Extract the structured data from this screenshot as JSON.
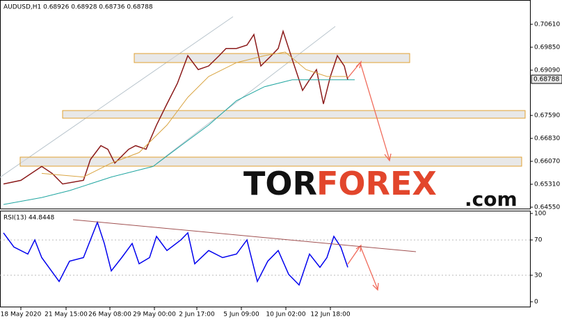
{
  "chart_data": [
    {
      "type": "line",
      "title": "AUDUSD,H1 0.68926 0.68928 0.68736 0.68788",
      "x": [
        5,
        30,
        60,
        75,
        90,
        120,
        130,
        145,
        155,
        165,
        185,
        195,
        210,
        225,
        240,
        255,
        270,
        285,
        300,
        315,
        325,
        340,
        355,
        365,
        375,
        390,
        400,
        407,
        420,
        435,
        445,
        455,
        465,
        475,
        485,
        495,
        500
      ],
      "series": [
        {
          "color": "#8b1a1a",
          "values": [
            0.6532,
            0.6544,
            0.659,
            0.6567,
            0.6532,
            0.6544,
            0.6613,
            0.6659,
            0.6647,
            0.6601,
            0.6647,
            0.6659,
            0.6647,
            0.6727,
            0.6797,
            0.6865,
            0.6957,
            0.6911,
            0.6923,
            0.6957,
            0.6981,
            0.6981,
            0.6992,
            0.7027,
            0.6923,
            0.6957,
            0.6981,
            0.7038,
            0.6946,
            0.6842,
            0.6877,
            0.6911,
            0.6797,
            0.6888,
            0.6957,
            0.6923,
            0.6877
          ]
        },
        {
          "color": "#d9a441",
          "x": [
            60,
            120,
            160,
            200,
            240,
            270,
            300,
            340,
            380,
            410,
            440,
            470,
            500
          ],
          "values": [
            0.6567,
            0.6555,
            0.6601,
            0.6636,
            0.6727,
            0.6819,
            0.6888,
            0.6934,
            0.6957,
            0.6969,
            0.6911,
            0.6888,
            0.6888
          ]
        },
        {
          "color": "#1fa5a0",
          "x": [
            5,
            60,
            100,
            160,
            220,
            260,
            300,
            340,
            380,
            420,
            460,
            510
          ],
          "values": [
            0.6464,
            0.6487,
            0.651,
            0.6555,
            0.659,
            0.6659,
            0.6727,
            0.6808,
            0.6854,
            0.6877,
            0.6877,
            0.6877
          ]
        }
      ],
      "xlim": [
        0,
        762
      ],
      "ylim": [
        0.64504,
        0.71346
      ],
      "yticks": [
        {
          "value": 0.7061,
          "label": "0.70610"
        },
        {
          "value": 0.6985,
          "label": "0.69850"
        },
        {
          "value": 0.6909,
          "label": "0.69090"
        },
        {
          "value": 0.6759,
          "label": "0.67590"
        },
        {
          "value": 0.6683,
          "label": "0.66830"
        },
        {
          "value": 0.6607,
          "label": "0.66070"
        },
        {
          "value": 0.6531,
          "label": "0.65310"
        },
        {
          "value": 0.6455,
          "label": "0.64550"
        }
      ],
      "last_price": 0.68788,
      "watermark": [
        "TOR",
        "FOREX",
        ".com"
      ]
    },
    {
      "type": "line",
      "title": "RSI(13) 44.8448",
      "x": [
        5,
        20,
        40,
        50,
        60,
        85,
        100,
        120,
        130,
        140,
        150,
        160,
        175,
        190,
        200,
        215,
        225,
        240,
        260,
        270,
        280,
        300,
        320,
        340,
        355,
        370,
        385,
        400,
        415,
        430,
        445,
        460,
        470,
        480,
        490,
        500
      ],
      "series": [
        {
          "color": "#0000ee",
          "values": [
            78,
            62,
            54,
            70,
            50,
            23,
            46,
            50,
            70,
            90,
            66,
            35,
            50,
            66,
            43,
            50,
            74,
            58,
            70,
            78,
            43,
            58,
            50,
            54,
            70,
            23,
            46,
            58,
            31,
            19,
            54,
            39,
            50,
            74,
            62,
            39
          ]
        }
      ],
      "xlim": [
        0,
        762
      ],
      "ylim": [
        0,
        100
      ],
      "yticks": [
        100,
        70,
        30,
        0
      ],
      "xticks": [
        {
          "value": 30,
          "label": "18 May 2020"
        },
        {
          "value": 95,
          "label": "21 May 15:00"
        },
        {
          "value": 158,
          "label": "26 May 08:00"
        },
        {
          "value": 222,
          "label": "29 May 00:00"
        },
        {
          "value": 283,
          "label": "2 Jun 17:00"
        },
        {
          "value": 347,
          "label": "5 Jun 09:00"
        },
        {
          "value": 411,
          "label": "10 Jun 02:00"
        },
        {
          "value": 475,
          "label": "12 Jun 18:00"
        }
      ]
    }
  ]
}
